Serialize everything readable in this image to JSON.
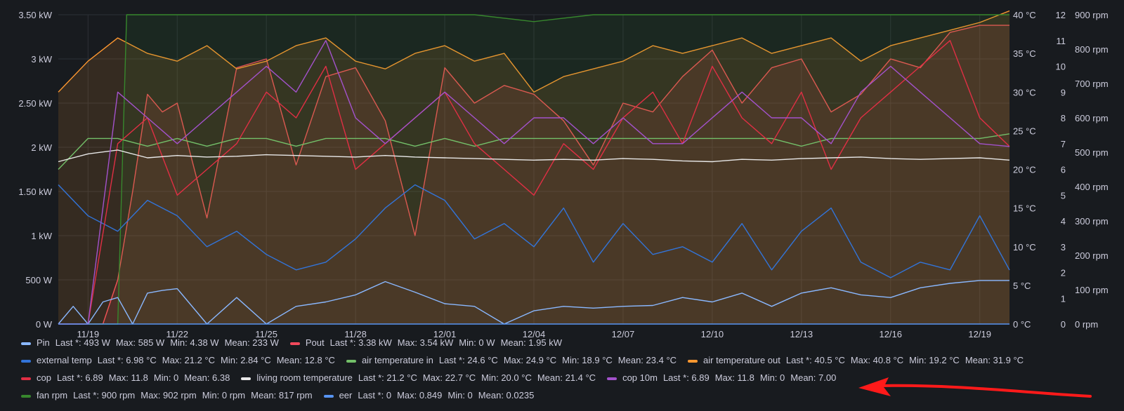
{
  "colors": {
    "background": "#181b1f",
    "text": "#ccccdc",
    "grid": "#2c3037",
    "annotation_arrow": "#ff1a1a"
  },
  "chart_data": {
    "type": "line",
    "title": "",
    "x_ticks": [
      "11/19",
      "11/22",
      "11/25",
      "11/28",
      "12/01",
      "12/04",
      "12/07",
      "12/10",
      "12/13",
      "12/16",
      "12/19"
    ],
    "x_range": [
      "11/18",
      "12/20"
    ],
    "axes": {
      "power": {
        "ticks": [
          "0 W",
          "500 W",
          "1 kW",
          "1.50 kW",
          "2 kW",
          "2.50 kW",
          "3 kW",
          "3.50 kW"
        ],
        "ylim": [
          0,
          3500
        ],
        "unit": "W"
      },
      "temperature": {
        "ticks": [
          "0 °C",
          "5 °C",
          "10 °C",
          "15 °C",
          "20 °C",
          "25 °C",
          "30 °C",
          "35 °C",
          "40 °C"
        ],
        "ylim": [
          0,
          40
        ],
        "unit": "°C"
      },
      "cop": {
        "ticks": [
          "0",
          "1",
          "2",
          "3",
          "4",
          "5",
          "6",
          "7",
          "8",
          "9",
          "10",
          "11",
          "12"
        ],
        "ylim": [
          0,
          12
        ]
      },
      "rpm": {
        "ticks": [
          "0 rpm",
          "100 rpm",
          "200 rpm",
          "300 rpm",
          "400 rpm",
          "500 rpm",
          "600 rpm",
          "700 rpm",
          "800 rpm",
          "900 rpm"
        ],
        "ylim": [
          0,
          900
        ],
        "unit": "rpm"
      }
    },
    "grid": true,
    "legend_position": "bottom",
    "series": [
      {
        "name": "Pin",
        "axis": "power",
        "color": "#8ab8ff",
        "fill": false,
        "x": [
          0,
          0.5,
          1,
          1.5,
          2,
          2.5,
          3,
          3.5,
          4,
          5,
          6,
          7,
          8,
          9,
          10,
          11,
          12,
          13,
          14,
          15,
          16,
          17,
          18,
          19,
          20,
          21,
          22,
          23,
          24,
          25,
          26,
          27,
          28,
          29,
          30,
          31,
          32
        ],
        "y": [
          0,
          200,
          0,
          250,
          300,
          0,
          350,
          380,
          400,
          0,
          300,
          0,
          200,
          250,
          330,
          480,
          360,
          230,
          200,
          0,
          150,
          200,
          180,
          200,
          210,
          300,
          250,
          350,
          200,
          350,
          410,
          330,
          300,
          410,
          460,
          493,
          493
        ]
      },
      {
        "name": "Pout",
        "axis": "power",
        "color": "#f2495c",
        "fill": true,
        "x": [
          0,
          1.5,
          2,
          2.5,
          3,
          3.5,
          4,
          5,
          6,
          7,
          8,
          9,
          10,
          11,
          12,
          13,
          14,
          15,
          16,
          17,
          18,
          19,
          20,
          21,
          22,
          23,
          24,
          25,
          26,
          27,
          28,
          29,
          30,
          31,
          32
        ],
        "y": [
          0,
          0,
          500,
          1500,
          2600,
          2400,
          2500,
          1200,
          2900,
          3000,
          1800,
          2800,
          2900,
          2300,
          1000,
          2900,
          2500,
          2700,
          2600,
          2300,
          1800,
          2500,
          2400,
          2800,
          3100,
          2500,
          2900,
          3000,
          2400,
          2600,
          3000,
          2900,
          3300,
          3380,
          3380
        ]
      },
      {
        "name": "external temp",
        "axis": "temperature",
        "color": "#3274d9",
        "fill": false,
        "x": [
          0,
          1,
          2,
          3,
          4,
          5,
          6,
          7,
          8,
          9,
          10,
          11,
          12,
          13,
          14,
          15,
          16,
          17,
          18,
          19,
          20,
          21,
          22,
          23,
          24,
          25,
          26,
          27,
          28,
          29,
          30,
          31,
          32
        ],
        "y": [
          18,
          14,
          12,
          16,
          14,
          10,
          12,
          9,
          7,
          8,
          11,
          15,
          18,
          16,
          11,
          13,
          10,
          15,
          8,
          13,
          9,
          10,
          8,
          13,
          7,
          12,
          15,
          8,
          6,
          8,
          7,
          14,
          6.98
        ]
      },
      {
        "name": "air temperature in",
        "axis": "temperature",
        "color": "#73bf69",
        "fill": false,
        "x": [
          0,
          1,
          2,
          3,
          4,
          5,
          6,
          7,
          8,
          9,
          10,
          11,
          12,
          13,
          14,
          15,
          16,
          17,
          18,
          19,
          20,
          21,
          22,
          23,
          24,
          25,
          26,
          27,
          28,
          29,
          30,
          31,
          32
        ],
        "y": [
          20,
          24,
          24,
          23,
          24,
          23,
          24,
          24,
          23,
          24,
          24,
          24,
          23,
          24,
          23,
          24,
          24,
          24,
          24,
          24,
          24,
          24,
          24,
          24,
          24,
          23,
          24,
          24,
          24,
          24,
          24,
          24,
          24.6
        ]
      },
      {
        "name": "air temperature out",
        "axis": "temperature",
        "color": "#ff9830",
        "fill": true,
        "x": [
          0,
          1,
          2,
          3,
          4,
          5,
          6,
          7,
          8,
          9,
          10,
          11,
          12,
          13,
          14,
          15,
          16,
          17,
          18,
          19,
          20,
          21,
          22,
          23,
          24,
          25,
          26,
          27,
          28,
          29,
          30,
          31,
          32
        ],
        "y": [
          30,
          34,
          37,
          35,
          34,
          36,
          33,
          34,
          36,
          37,
          34,
          33,
          35,
          36,
          34,
          35,
          30,
          32,
          33,
          34,
          36,
          35,
          36,
          37,
          35,
          36,
          37,
          34,
          36,
          37,
          38,
          39,
          40.5
        ]
      },
      {
        "name": "cop",
        "axis": "cop",
        "color": "#e02f44",
        "fill": false,
        "x": [
          0,
          1,
          2,
          3,
          4,
          5,
          6,
          7,
          8,
          9,
          10,
          11,
          12,
          13,
          14,
          15,
          16,
          17,
          18,
          19,
          20,
          21,
          22,
          23,
          24,
          25,
          26,
          27,
          28,
          29,
          30,
          31,
          32
        ],
        "y": [
          0,
          0,
          7,
          8,
          5,
          6,
          7,
          9,
          8,
          10,
          6,
          7,
          8,
          9,
          7,
          6,
          5,
          7,
          6,
          8,
          9,
          7,
          10,
          8,
          7,
          9,
          6,
          8,
          9,
          10,
          11,
          8,
          6.89
        ]
      },
      {
        "name": "living room temperature",
        "axis": "temperature",
        "color": "#e8e8e8",
        "fill": false,
        "x": [
          0,
          1,
          2,
          3,
          4,
          5,
          6,
          7,
          8,
          9,
          10,
          11,
          12,
          13,
          14,
          15,
          16,
          17,
          18,
          19,
          20,
          21,
          22,
          23,
          24,
          25,
          26,
          27,
          28,
          29,
          30,
          31,
          32
        ],
        "y": [
          21,
          22,
          22.5,
          21.5,
          21.8,
          21.6,
          21.7,
          21.9,
          21.8,
          21.7,
          21.6,
          21.8,
          21.6,
          21.5,
          21.4,
          21.3,
          21.2,
          21.3,
          21.2,
          21.4,
          21.3,
          21.1,
          21.0,
          21.3,
          21.2,
          21.4,
          21.5,
          21.6,
          21.4,
          21.3,
          21.4,
          21.5,
          21.2
        ]
      },
      {
        "name": "cop 10m",
        "axis": "cop",
        "color": "#a352cc",
        "fill": false,
        "x": [
          0,
          1,
          2,
          3,
          4,
          5,
          6,
          7,
          8,
          9,
          10,
          11,
          12,
          13,
          14,
          15,
          16,
          17,
          18,
          19,
          20,
          21,
          22,
          23,
          24,
          25,
          26,
          27,
          28,
          29,
          30,
          31,
          32
        ],
        "y": [
          0,
          0,
          9,
          8,
          7,
          8,
          9,
          10,
          9,
          11,
          8,
          7,
          8,
          9,
          8,
          7,
          8,
          8,
          7,
          8,
          7,
          7,
          8,
          9,
          8,
          8,
          7,
          9,
          10,
          9,
          8,
          7,
          6.89
        ]
      },
      {
        "name": "fan rpm",
        "axis": "rpm",
        "color": "#37872d",
        "fill": true,
        "x": [
          0,
          2,
          2.3,
          4,
          6,
          8,
          10,
          12,
          14,
          16,
          18,
          20,
          22,
          24,
          26,
          28,
          30,
          32
        ],
        "y": [
          0,
          0,
          900,
          900,
          900,
          900,
          900,
          900,
          900,
          880,
          900,
          900,
          900,
          900,
          900,
          900,
          900,
          900
        ]
      },
      {
        "name": "eer",
        "axis": "cop",
        "color": "#5794f2",
        "fill": false,
        "x": [
          0,
          32
        ],
        "y": [
          0,
          0
        ]
      }
    ]
  },
  "legend": {
    "rows": [
      [
        {
          "name": "Pin",
          "color": "#8ab8ff",
          "stats": [
            "Last *: 493 W",
            "Max: 585 W",
            "Min: 4.38 W",
            "Mean: 233 W"
          ]
        },
        {
          "name": "Pout",
          "color": "#f2495c",
          "stats": [
            "Last *: 3.38 kW",
            "Max: 3.54 kW",
            "Min: 0 W",
            "Mean: 1.95 kW"
          ]
        }
      ],
      [
        {
          "name": "external temp",
          "color": "#3274d9",
          "stats": [
            "Last *: 6.98 °C",
            "Max: 21.2 °C",
            "Min: 2.84 °C",
            "Mean: 12.8 °C"
          ]
        },
        {
          "name": "air temperature in",
          "color": "#73bf69",
          "stats": [
            "Last *: 24.6 °C",
            "Max: 24.9 °C",
            "Min: 18.9 °C",
            "Mean: 23.4 °C"
          ]
        },
        {
          "name": "air temperature out",
          "color": "#ff9830",
          "stats": [
            "Last *: 40.5 °C",
            "Max: 40.8 °C",
            "Min: 19.2 °C",
            "Mean: 31.9 °C"
          ]
        }
      ],
      [
        {
          "name": "cop",
          "color": "#e02f44",
          "stats": [
            "Last *: 6.89",
            "Max: 11.8",
            "Min: 0",
            "Mean: 6.38"
          ]
        },
        {
          "name": "living room temperature",
          "color": "#e8e8e8",
          "stats": [
            "Last *: 21.2 °C",
            "Max: 22.7 °C",
            "Min: 20.0 °C",
            "Mean: 21.4 °C"
          ]
        },
        {
          "name": "cop 10m",
          "color": "#a352cc",
          "stats": [
            "Last *: 6.89",
            "Max: 11.8",
            "Min: 0",
            "Mean: 7.00"
          ]
        }
      ],
      [
        {
          "name": "fan rpm",
          "color": "#37872d",
          "stats": [
            "Last *: 900 rpm",
            "Max: 902 rpm",
            "Min: 0 rpm",
            "Mean: 817 rpm"
          ]
        },
        {
          "name": "eer",
          "color": "#5794f2",
          "stats": [
            "Last *: 0",
            "Max: 0.849",
            "Min: 0",
            "Mean: 0.0235"
          ]
        }
      ]
    ]
  }
}
